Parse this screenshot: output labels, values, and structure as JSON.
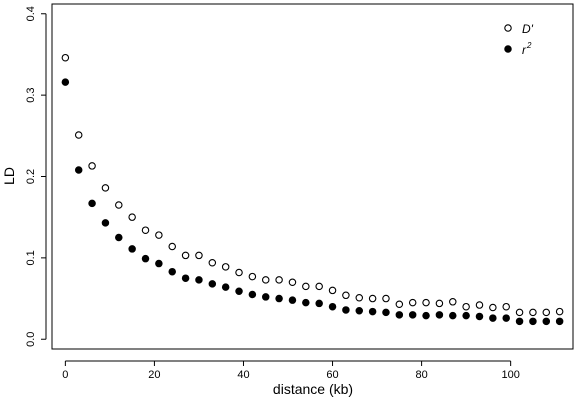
{
  "chart_data": {
    "type": "scatter",
    "title": "",
    "xlabel": "distance (kb)",
    "ylabel": "LD",
    "xlim": [
      -3,
      114
    ],
    "ylim": [
      -0.012,
      0.412
    ],
    "x_ticks": [
      0,
      20,
      40,
      60,
      80,
      100
    ],
    "y_ticks": [
      0.0,
      0.1,
      0.2,
      0.3,
      0.4
    ],
    "x_tick_labels": [
      "0",
      "20",
      "40",
      "60",
      "80",
      "100"
    ],
    "y_tick_labels": [
      "0.0",
      "0.1",
      "0.2",
      "0.3",
      "0.4"
    ],
    "grid": false,
    "legend_position": "top-right",
    "series": [
      {
        "name": "D'",
        "legend_main": "D",
        "legend_suffix": "'",
        "marker": "open-circle",
        "color": "#000000",
        "x": [
          0,
          3,
          6,
          9,
          12,
          15,
          18,
          21,
          24,
          27,
          30,
          33,
          36,
          39,
          42,
          45,
          48,
          51,
          54,
          57,
          60,
          63,
          66,
          69,
          72,
          75,
          78,
          81,
          84,
          87,
          90,
          93,
          96,
          99,
          102,
          105,
          108,
          111
        ],
        "y": [
          0.346,
          0.251,
          0.213,
          0.186,
          0.165,
          0.15,
          0.134,
          0.128,
          0.114,
          0.103,
          0.103,
          0.094,
          0.089,
          0.082,
          0.077,
          0.073,
          0.073,
          0.07,
          0.065,
          0.065,
          0.06,
          0.054,
          0.051,
          0.05,
          0.05,
          0.043,
          0.045,
          0.045,
          0.044,
          0.046,
          0.04,
          0.042,
          0.039,
          0.04,
          0.033,
          0.033,
          0.033,
          0.034
        ]
      },
      {
        "name": "r2",
        "legend_main": "r",
        "legend_suffix": "2",
        "marker": "filled-circle",
        "color": "#000000",
        "x": [
          0,
          3,
          6,
          9,
          12,
          15,
          18,
          21,
          24,
          27,
          30,
          33,
          36,
          39,
          42,
          45,
          48,
          51,
          54,
          57,
          60,
          63,
          66,
          69,
          72,
          75,
          78,
          81,
          84,
          87,
          90,
          93,
          96,
          99,
          102,
          105,
          108,
          111
        ],
        "y": [
          0.316,
          0.208,
          0.167,
          0.143,
          0.125,
          0.111,
          0.099,
          0.093,
          0.083,
          0.075,
          0.073,
          0.068,
          0.064,
          0.059,
          0.055,
          0.052,
          0.05,
          0.048,
          0.045,
          0.044,
          0.04,
          0.036,
          0.035,
          0.034,
          0.033,
          0.03,
          0.03,
          0.029,
          0.03,
          0.029,
          0.029,
          0.028,
          0.026,
          0.026,
          0.022,
          0.022,
          0.022,
          0.022
        ]
      }
    ]
  }
}
